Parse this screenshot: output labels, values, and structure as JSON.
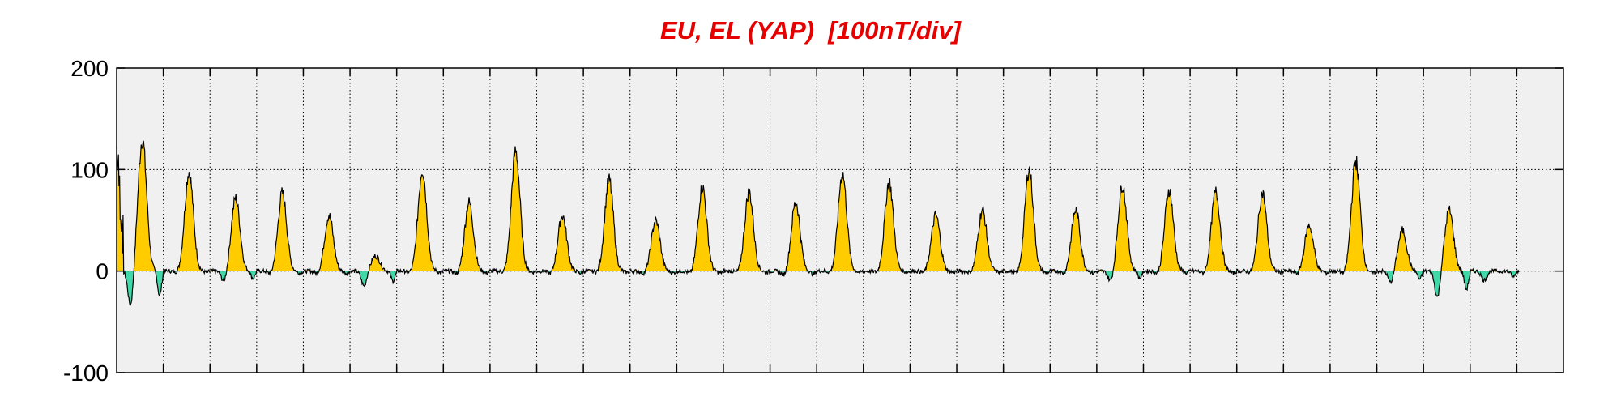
{
  "chart_data": {
    "type": "area",
    "title": "EU, EL (YAP)  [100nT/div]",
    "xlabel": "",
    "ylabel": "",
    "ylim": [
      -100,
      200
    ],
    "xlim": [
      0,
      31
    ],
    "x_tick_labels": [],
    "y_ticks": [
      200,
      100,
      0,
      -100
    ],
    "y_tick_labels": [
      "200",
      "100",
      "0",
      "-100"
    ],
    "grid": true,
    "day_peaks": [
      130,
      98,
      72,
      77,
      55,
      15,
      100,
      68,
      118,
      55,
      90,
      50,
      83,
      78,
      68,
      96,
      88,
      55,
      60,
      100,
      60,
      85,
      80,
      78,
      77,
      45,
      108,
      40,
      60,
      0
    ],
    "day_troughs": [
      -60,
      -3,
      -18,
      -5,
      -5,
      -25,
      -3,
      -5,
      -3,
      -5,
      -3,
      -5,
      -5,
      -3,
      -8,
      -3,
      -3,
      -3,
      -3,
      -5,
      -5,
      -18,
      -5,
      -5,
      -3,
      -5,
      -5,
      -20,
      -45,
      -15
    ],
    "series": [
      {
        "name": "EU",
        "color": "#ffcc00",
        "shape": "positive fill, daily peaks"
      },
      {
        "name": "EL",
        "color": "#40d8a8",
        "shape": "negative fill, daily troughs"
      }
    ],
    "line_color": "#000000",
    "background": "#f0f0f0"
  }
}
